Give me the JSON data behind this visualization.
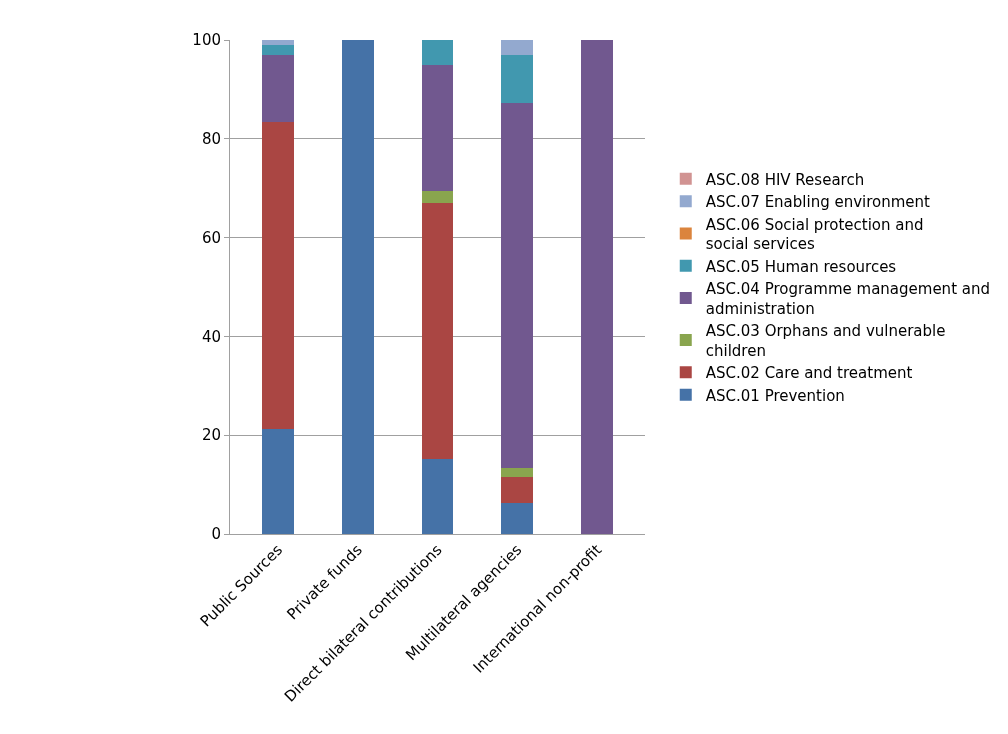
{
  "chart_data": {
    "type": "bar",
    "stacked": true,
    "categories": [
      "Public Sources",
      "Private funds",
      "Direct bilateral contributions",
      "Multilateral agencies",
      "International non-profit"
    ],
    "series": [
      {
        "name": "ASC.01 Prevention",
        "color": "#4572a7",
        "values": [
          21.2,
          100,
          15.2,
          6.3,
          0
        ]
      },
      {
        "name": "ASC.02 Care and treatment",
        "color": "#aa4643",
        "values": [
          62.3,
          0,
          51.8,
          5.2,
          0
        ]
      },
      {
        "name": "ASC.03 Orphans and vulnerable children",
        "color": "#89a54e",
        "values": [
          0,
          0,
          2.5,
          1.8,
          0
        ]
      },
      {
        "name": "ASC.04 Programme management and administration",
        "color": "#71588f",
        "values": [
          13.4,
          0,
          25.4,
          73.9,
          100
        ]
      },
      {
        "name": "ASC.05 Human resources",
        "color": "#4198af",
        "values": [
          2.0,
          0,
          5.1,
          9.7,
          0
        ]
      },
      {
        "name": "ASC.06 Social protection and social services",
        "color": "#db843d",
        "values": [
          0,
          0,
          0,
          0,
          0
        ]
      },
      {
        "name": "ASC.07 Enabling environment",
        "color": "#93a9cf",
        "values": [
          1.1,
          0,
          0,
          3.1,
          0
        ]
      },
      {
        "name": "ASC.08 HIV Research",
        "color": "#d19392",
        "values": [
          0,
          0,
          0,
          0,
          0
        ]
      }
    ],
    "ylim": [
      0,
      100
    ],
    "yticks": [
      0,
      20,
      40,
      60,
      80,
      100
    ],
    "grid": "y",
    "legend": "right"
  }
}
